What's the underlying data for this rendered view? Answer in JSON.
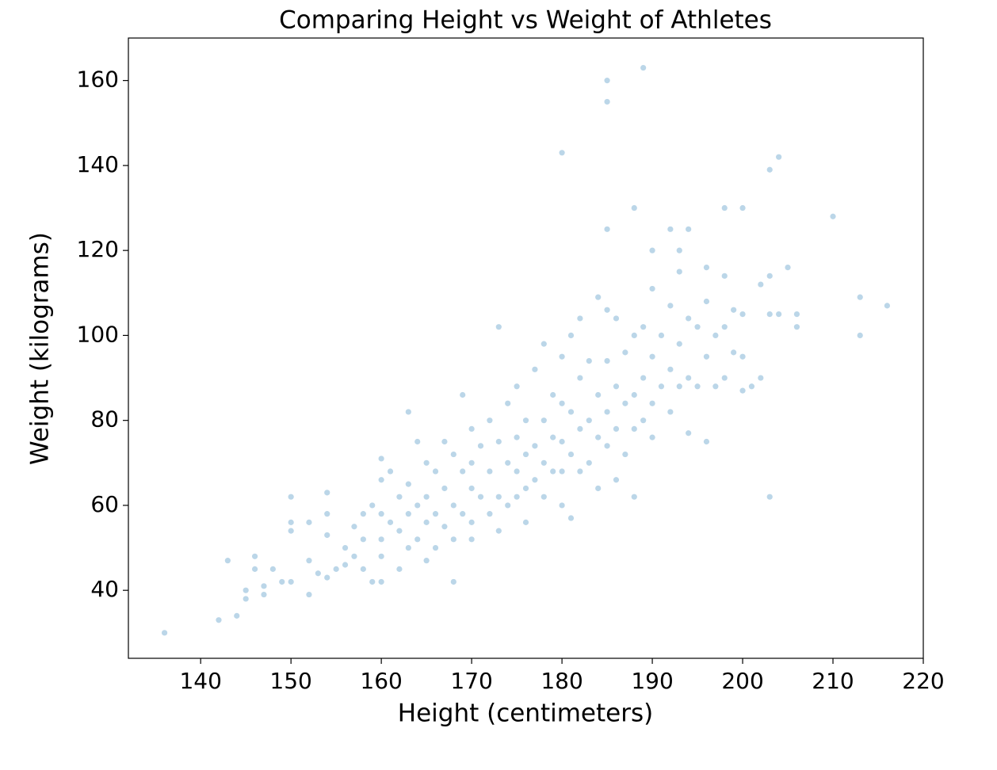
{
  "chart_data": {
    "type": "scatter",
    "title": "Comparing Height vs Weight of Athletes",
    "x_label": "Height (centimeters)",
    "y_label": "Weight (kilograms)",
    "color": "#1f77b4",
    "alpha": 0.3,
    "xlim": [
      132,
      220
    ],
    "xticks": [
      140,
      150,
      160,
      170,
      180,
      190,
      200,
      210,
      220
    ],
    "ylim": [
      24,
      170
    ],
    "yticks": [
      40,
      60,
      80,
      100,
      120,
      140,
      160
    ],
    "x": [
      136,
      142,
      143,
      144,
      145,
      145,
      146,
      146,
      147,
      147,
      148,
      149,
      150,
      150,
      150,
      150,
      152,
      152,
      152,
      153,
      154,
      154,
      154,
      154,
      155,
      156,
      156,
      157,
      157,
      158,
      158,
      158,
      159,
      159,
      160,
      160,
      160,
      160,
      160,
      160,
      161,
      161,
      162,
      162,
      162,
      163,
      163,
      163,
      163,
      164,
      164,
      164,
      165,
      165,
      165,
      165,
      166,
      166,
      166,
      167,
      167,
      167,
      168,
      168,
      168,
      168,
      169,
      169,
      169,
      170,
      170,
      170,
      170,
      170,
      171,
      171,
      172,
      172,
      172,
      173,
      173,
      173,
      173,
      174,
      174,
      174,
      175,
      175,
      175,
      175,
      176,
      176,
      176,
      176,
      177,
      177,
      177,
      178,
      178,
      178,
      178,
      179,
      179,
      179,
      180,
      180,
      180,
      180,
      180,
      180,
      181,
      181,
      181,
      181,
      182,
      182,
      182,
      182,
      183,
      183,
      183,
      184,
      184,
      184,
      184,
      185,
      185,
      185,
      185,
      185,
      185,
      185,
      186,
      186,
      186,
      186,
      187,
      187,
      187,
      188,
      188,
      188,
      188,
      188,
      189,
      189,
      189,
      189,
      190,
      190,
      190,
      190,
      190,
      191,
      191,
      192,
      192,
      192,
      192,
      193,
      193,
      193,
      193,
      194,
      194,
      194,
      194,
      195,
      195,
      196,
      196,
      196,
      196,
      197,
      197,
      198,
      198,
      198,
      198,
      199,
      199,
      200,
      200,
      200,
      200,
      201,
      202,
      202,
      203,
      203,
      203,
      203,
      204,
      204,
      205,
      206,
      206,
      210,
      213,
      213,
      216
    ],
    "values": [
      30,
      33,
      47,
      34,
      40,
      38,
      48,
      45,
      41,
      39,
      45,
      42,
      62,
      56,
      54,
      42,
      47,
      39,
      56,
      44,
      63,
      58,
      53,
      43,
      45,
      50,
      46,
      55,
      48,
      58,
      45,
      52,
      60,
      42,
      71,
      66,
      58,
      52,
      48,
      42,
      68,
      56,
      62,
      54,
      45,
      82,
      65,
      58,
      50,
      75,
      60,
      52,
      70,
      62,
      56,
      47,
      68,
      58,
      50,
      75,
      64,
      55,
      72,
      42,
      60,
      52,
      86,
      68,
      58,
      78,
      70,
      64,
      56,
      52,
      74,
      62,
      80,
      68,
      58,
      102,
      75,
      62,
      54,
      84,
      70,
      60,
      88,
      76,
      68,
      62,
      80,
      72,
      64,
      56,
      92,
      74,
      66,
      98,
      80,
      70,
      62,
      86,
      76,
      68,
      143,
      95,
      84,
      75,
      68,
      60,
      100,
      82,
      72,
      57,
      104,
      90,
      78,
      68,
      94,
      80,
      70,
      109,
      86,
      76,
      64,
      160,
      155,
      125,
      106,
      94,
      82,
      74,
      104,
      88,
      78,
      66,
      96,
      84,
      72,
      130,
      100,
      86,
      78,
      62,
      163,
      102,
      90,
      80,
      120,
      111,
      95,
      84,
      76,
      100,
      88,
      125,
      107,
      92,
      82,
      120,
      115,
      98,
      88,
      125,
      104,
      90,
      77,
      102,
      88,
      116,
      108,
      95,
      75,
      100,
      88,
      130,
      114,
      102,
      90,
      106,
      96,
      130,
      105,
      95,
      87,
      88,
      112,
      90,
      139,
      114,
      105,
      62,
      142,
      105,
      116,
      105,
      102,
      128,
      109,
      100,
      107
    ]
  }
}
